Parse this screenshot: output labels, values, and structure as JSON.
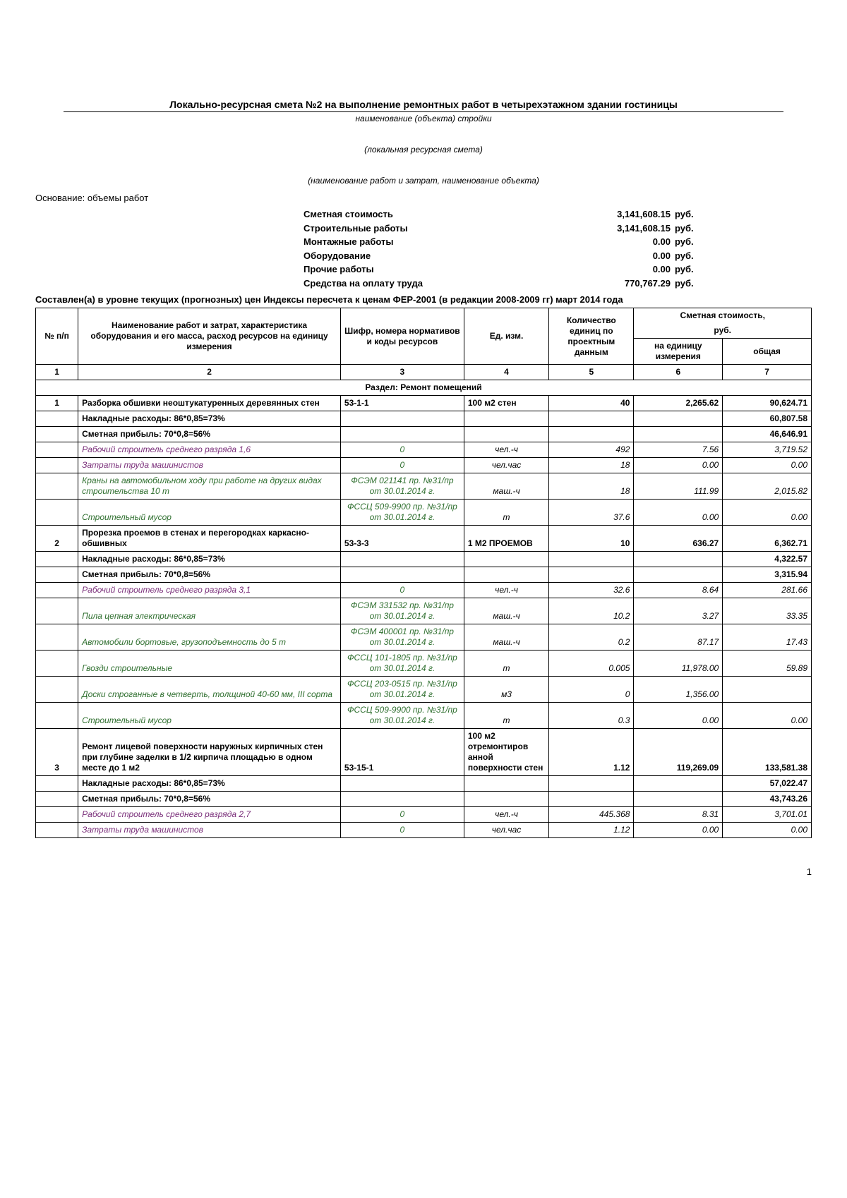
{
  "page_number": "1",
  "header": {
    "title": "Локально-ресурсная смета №2 на выполнение ремонтных работ в четырехэтажном здании гостиницы",
    "sub1": "наименование (объекта) стройки",
    "sub2": "(локальная ресурсная смета)",
    "sub3": "(наименование работ и затрат, наименование объекта)",
    "basis": "Основание: объемы работ",
    "composed": "Составлен(а) в уровне текущих (прогнозных) цен Индексы пересчета к ценам ФЕР-2001 (в редакции 2008-2009 гг) март 2014 года"
  },
  "summary": {
    "unit": "руб.",
    "rows": [
      {
        "label": "Сметная стоимость",
        "value": "3,141,608.15"
      },
      {
        "label": "Строительные работы",
        "value": "3,141,608.15"
      },
      {
        "label": "Монтажные работы",
        "value": "0.00"
      },
      {
        "label": "Оборудование",
        "value": "0.00"
      },
      {
        "label": "Прочие работы",
        "value": "0.00"
      },
      {
        "label": "Средства на оплату труда",
        "value": "770,767.29"
      }
    ]
  },
  "columns": {
    "h_cost": "Сметная стоимость,",
    "h_cost_unit": "руб.",
    "h1": "№ п/п",
    "h2": "Наименование работ и затрат, характеристика оборудования и его масса, расход ресурсов на единицу измерения",
    "h3": "Шифр, номера нормативов и коды ресурсов",
    "h4": "Ед. изм.",
    "h5": "Количество единиц по проектным данным",
    "h6": "на единицу измерения",
    "h7": "общая",
    "n1": "1",
    "n2": "2",
    "n3": "3",
    "n4": "4",
    "n5": "5",
    "n6": "6",
    "n7": "7"
  },
  "section_title": "Раздел: Ремонт помещений",
  "rows": [
    {
      "t": "work",
      "num": "1",
      "name": "Разборка обшивки неоштукатуренных деревянных стен",
      "code": "53-1-1",
      "unit": "100 м2 стен",
      "qty": "40",
      "price": "2,265.62",
      "total": "90,624.71"
    },
    {
      "t": "over",
      "name": "Накладные расходы: 86*0,85=73%",
      "total": "60,807.58"
    },
    {
      "t": "profit",
      "name": "Сметная прибыль: 70*0,8=56%",
      "total": "46,646.91"
    },
    {
      "t": "res",
      "style": "labor",
      "name": "Рабочий строитель среднего разряда 1,6",
      "code": "0",
      "unit": "чел.-ч",
      "qty": "492",
      "price": "7.56",
      "total": "3,719.52"
    },
    {
      "t": "res",
      "style": "labor",
      "name": "Затраты труда машинистов",
      "code": "0",
      "unit": "чел.час",
      "qty": "18",
      "price": "0.00",
      "total": "0.00"
    },
    {
      "t": "res",
      "style": "mat",
      "name": "Краны на автомобильном ходу при работе на других видах строительства 10 т",
      "code": "ФСЭМ 021141 пр. №31/пр от 30.01.2014 г.",
      "unit": "маш.-ч",
      "qty": "18",
      "price": "111.99",
      "total": "2,015.82"
    },
    {
      "t": "res",
      "style": "mat",
      "name": "Строительный мусор",
      "code": "ФССЦ 509-9900 пр. №31/пр от 30.01.2014 г.",
      "unit": "т",
      "qty": "37.6",
      "price": "0.00",
      "total": "0.00"
    },
    {
      "t": "work",
      "num": "2",
      "name": "Прорезка проемов в стенах и перегородках каркасно-обшивных",
      "code": "53-3-3",
      "unit": "1 М2 ПРОЕМОВ",
      "qty": "10",
      "price": "636.27",
      "total": "6,362.71"
    },
    {
      "t": "over",
      "name": "Накладные расходы: 86*0,85=73%",
      "total": "4,322.57"
    },
    {
      "t": "profit",
      "name": "Сметная прибыль: 70*0,8=56%",
      "total": "3,315.94"
    },
    {
      "t": "res",
      "style": "labor",
      "name": "Рабочий строитель среднего разряда 3,1",
      "code": "0",
      "unit": "чел.-ч",
      "qty": "32.6",
      "price": "8.64",
      "total": "281.66"
    },
    {
      "t": "res",
      "style": "mat",
      "name": "Пила цепная электрическая",
      "code": "ФСЭМ 331532 пр. №31/пр от 30.01.2014 г.",
      "unit": "маш.-ч",
      "qty": "10.2",
      "price": "3.27",
      "total": "33.35"
    },
    {
      "t": "res",
      "style": "mat",
      "name": "Автомобили бортовые, грузоподъемность до 5 т",
      "code": "ФСЭМ 400001 пр. №31/пр от 30.01.2014 г.",
      "unit": "маш.-ч",
      "qty": "0.2",
      "price": "87.17",
      "total": "17.43"
    },
    {
      "t": "res",
      "style": "mat",
      "name": "Гвозди строительные",
      "code": "ФССЦ 101-1805 пр. №31/пр от 30.01.2014 г.",
      "unit": "т",
      "qty": "0.005",
      "price": "11,978.00",
      "total": "59.89"
    },
    {
      "t": "res",
      "style": "mat",
      "name": "Доски строганные в четверть, толщиной 40-60 мм, III сорта",
      "code": "ФССЦ 203-0515 пр. №31/пр от 30.01.2014 г.",
      "unit": "м3",
      "qty": "0",
      "price": "1,356.00",
      "total": ""
    },
    {
      "t": "res",
      "style": "mat",
      "name": "Строительный мусор",
      "code": "ФССЦ 509-9900 пр. №31/пр от 30.01.2014 г.",
      "unit": "т",
      "qty": "0.3",
      "price": "0.00",
      "total": "0.00"
    },
    {
      "t": "work",
      "num": "3",
      "name": "Ремонт лицевой поверхности наружных кирпичных стен при глубине заделки в 1/2 кирпича площадью в одном месте до 1 м2",
      "code": "53-15-1",
      "unit": "100 м2 отремонтиров анной поверхности стен",
      "qty": "1.12",
      "price": "119,269.09",
      "total": "133,581.38"
    },
    {
      "t": "over",
      "name": "Накладные расходы: 86*0,85=73%",
      "total": "57,022.47"
    },
    {
      "t": "profit",
      "name": "Сметная прибыль: 70*0,8=56%",
      "total": "43,743.26"
    },
    {
      "t": "res",
      "style": "labor",
      "name": "Рабочий строитель среднего разряда 2,7",
      "code": "0",
      "unit": "чел.-ч",
      "qty": "445.368",
      "price": "8.31",
      "total": "3,701.01"
    },
    {
      "t": "res",
      "style": "labor",
      "name": "Затраты труда машинистов",
      "code": "0",
      "unit": "чел.час",
      "qty": "1.12",
      "price": "0.00",
      "total": "0.00"
    }
  ],
  "colors": {
    "labor_name": "#7a2f7a",
    "mat_name": "#2f6f2f",
    "res_code": "#2f6f2f"
  }
}
